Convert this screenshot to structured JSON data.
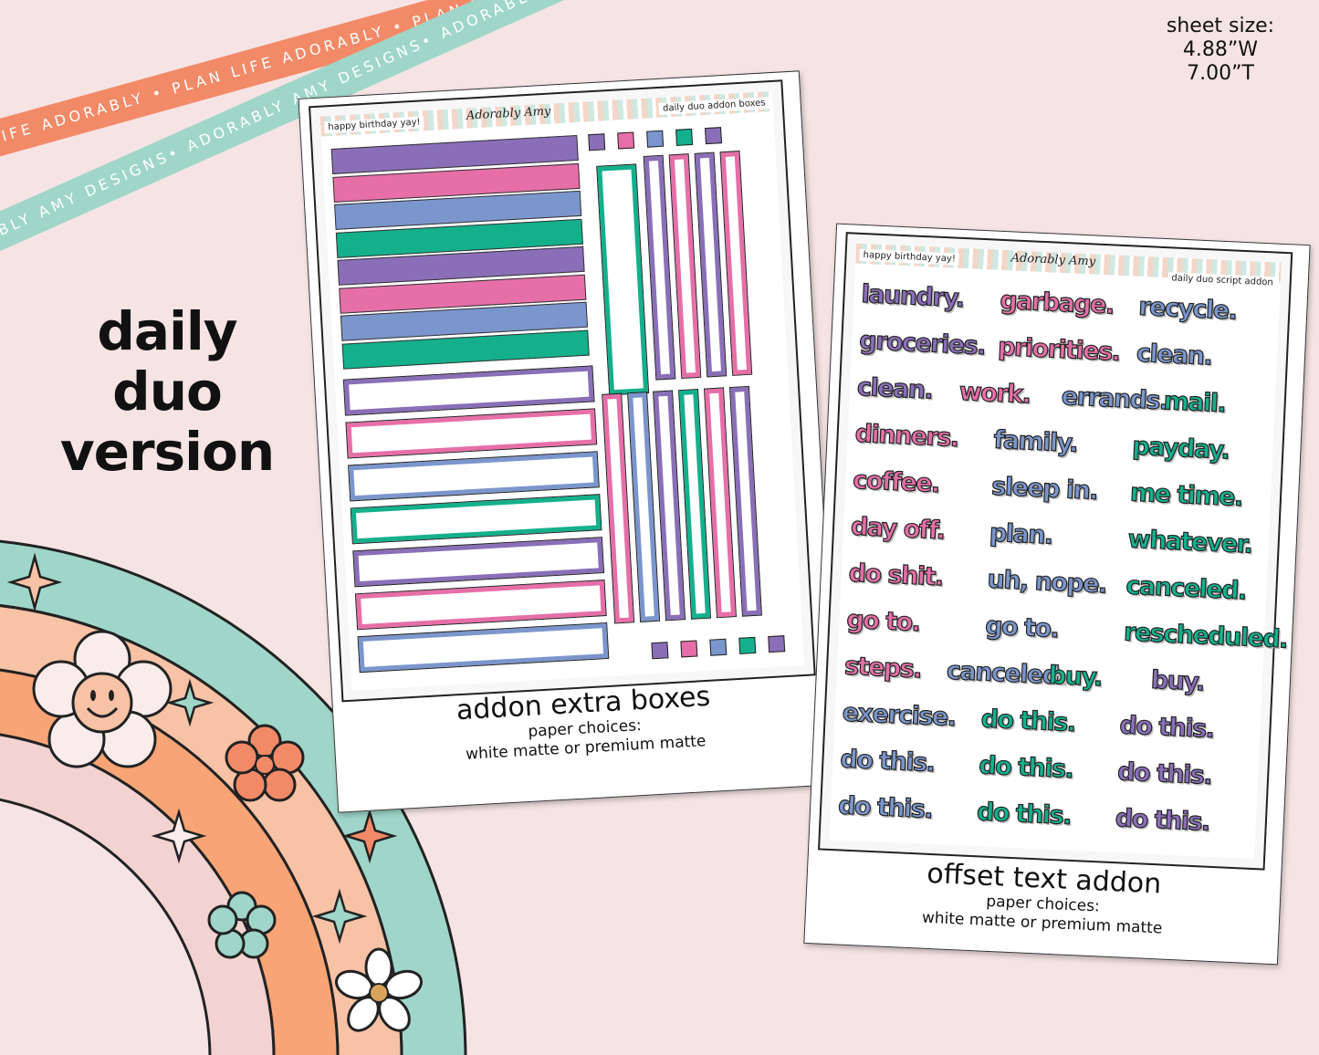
{
  "ribbons": {
    "orange_text": "PLAN LIFE ADORABLY • PLAN LIFE ADORABLY • PLAN LIFE ADORABLY •",
    "mint_text": "ADORABLY AMY DESIGNS• ADORABLY AMY DESIGNS• ADORABLY AMY DESIGNS•"
  },
  "sheet_size": {
    "label": "sheet size:",
    "width": "4.88”W",
    "height": "7.00”T"
  },
  "version_title": {
    "line1": "daily",
    "line2": "duo",
    "line3": "version"
  },
  "card1": {
    "header_left": "happy birthday yay!",
    "logo": "Adorably Amy",
    "header_right": "daily duo addon boxes",
    "title": "addon extra boxes",
    "paper_label": "paper choices:",
    "paper_options": "white matte or premium matte"
  },
  "card2": {
    "header_left": "happy birthday yay!",
    "logo": "Adorably Amy",
    "header_right": "daily duo script addon",
    "title": "offset text addon",
    "paper_label": "paper choices:",
    "paper_options": "white matte or premium matte",
    "words": [
      [
        "laundry.",
        "garbage.",
        "recycle."
      ],
      [
        "groceries.",
        "priorities.",
        "clean."
      ],
      [
        "clean.",
        "work.",
        "errands.",
        "mail."
      ],
      [
        "dinners.",
        "family.",
        "payday."
      ],
      [
        "coffee.",
        "sleep in.",
        "me time."
      ],
      [
        "day off.",
        "plan.",
        "whatever."
      ],
      [
        "do shit.",
        "uh, nope.",
        "canceled."
      ],
      [
        "go to.",
        "go to.",
        "rescheduled."
      ],
      [
        "steps.",
        "canceled.",
        "buy.",
        "buy."
      ],
      [
        "exercise.",
        "do this.",
        "do this."
      ],
      [
        "do this.",
        "do this.",
        "do this."
      ],
      [
        "do this.",
        "do this.",
        "do this."
      ]
    ]
  },
  "colors": {
    "purple": "#8a6fb8",
    "pink": "#e66fa8",
    "blue": "#7b96cc",
    "green": "#14b08c",
    "orange": "#f28a68",
    "mint": "#9fd6c9",
    "peach": "#f7c2a6",
    "blush": "#f3d2d2"
  }
}
